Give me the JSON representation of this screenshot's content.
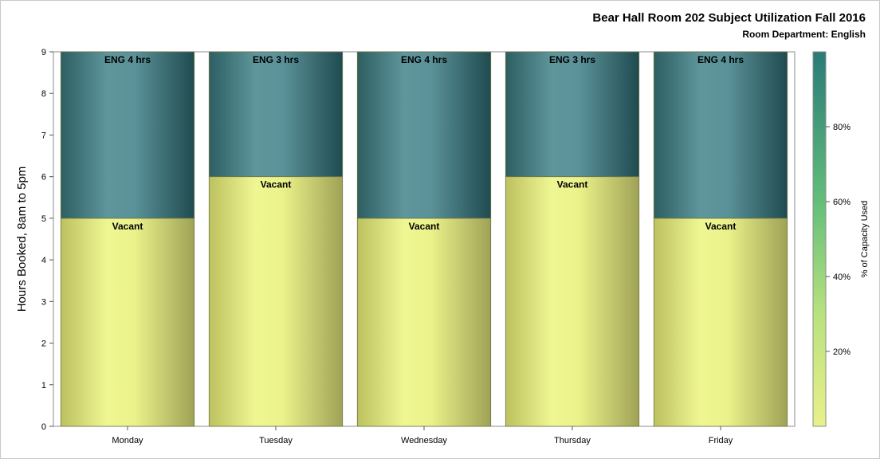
{
  "title": "Bear Hall Room 202 Subject Utilization Fall 2016",
  "subtitle": "Room Department:  English",
  "chart_data": {
    "type": "bar",
    "stacked": true,
    "title": "Bear Hall Room 202 Subject Utilization Fall 2016",
    "subtitle": "Room Department:  English",
    "categories": [
      "Monday",
      "Tuesday",
      "Wednesday",
      "Thursday",
      "Friday"
    ],
    "series": [
      {
        "name": "Vacant",
        "values": [
          5,
          6,
          5,
          6,
          5
        ],
        "labels": [
          "Vacant",
          "Vacant",
          "Vacant",
          "Vacant",
          "Vacant"
        ],
        "color": "#e9f08a"
      },
      {
        "name": "ENG",
        "values": [
          4,
          3,
          4,
          3,
          4
        ],
        "labels": [
          "ENG 4 hrs",
          "ENG 3 hrs",
          "ENG 4 hrs",
          "ENG 3 hrs",
          "ENG 4 hrs"
        ],
        "color": "#5b9096"
      }
    ],
    "xlabel": "",
    "ylabel": "Hours Booked, 8am to 5pm",
    "ylim": [
      0,
      9
    ],
    "yticks": [
      0,
      1,
      2,
      3,
      4,
      5,
      6,
      7,
      8,
      9
    ],
    "ytick_labels": [
      "0",
      "1",
      "2",
      "3",
      "4",
      "5",
      "6",
      "7",
      "8",
      "9"
    ],
    "grid": false,
    "colorbar": {
      "title": "% of Capacity Used",
      "range": [
        0,
        100
      ],
      "ticks": [
        20,
        40,
        60,
        80
      ],
      "tick_labels": [
        "20%",
        "40%",
        "60%",
        "80%"
      ],
      "colors": [
        "#e9f08a",
        "#2e7a78"
      ]
    }
  }
}
